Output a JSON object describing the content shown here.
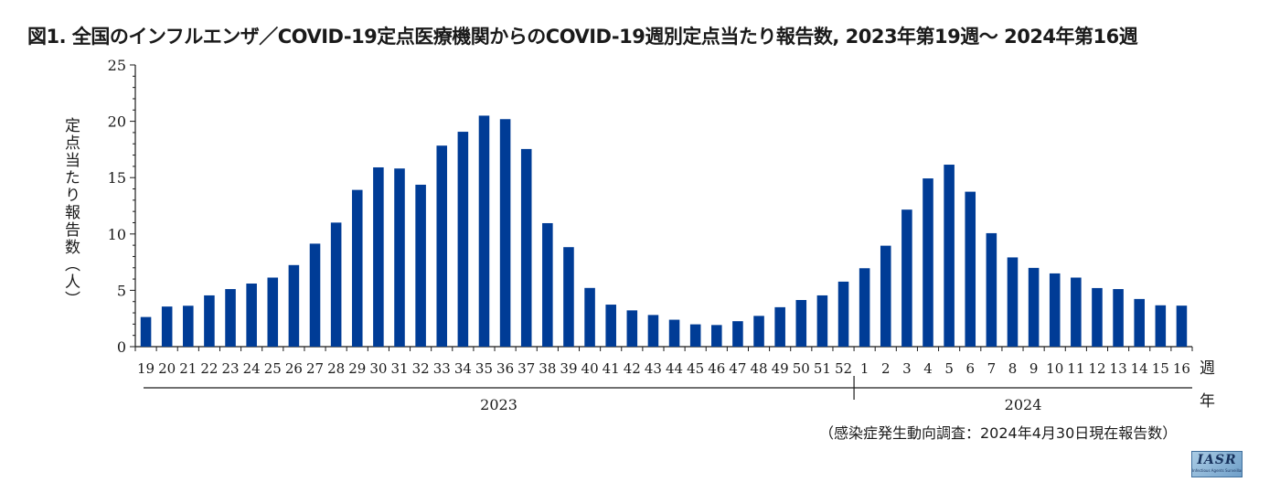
{
  "title": "図1. 全国のインフルエンザ／COVID-19定点医療機関からのCOVID-19週別定点当たり報告数, 2023年第19週〜 2024年第16週",
  "source_note": "（感染症発生動向調査：2024年4月30日現在報告数）",
  "logo": {
    "mark": "IASR",
    "sub": "Infectious Agents Surveillance Report"
  },
  "colors": {
    "bar": "#003c96",
    "axis": "#1a1a1a"
  },
  "chart_data": {
    "type": "bar",
    "title": "全国のインフルエンザ／COVID-19定点医療機関からのCOVID-19週別定点当たり報告数, 2023年第19週〜 2024年第16週",
    "ylabel": "定点当たり報告数（人）",
    "xlabel_week": "週",
    "xlabel_year": "年",
    "ylim": [
      0,
      25
    ],
    "yticks": [
      0,
      5,
      10,
      15,
      20,
      25
    ],
    "categories": [
      "19",
      "20",
      "21",
      "22",
      "23",
      "24",
      "25",
      "26",
      "27",
      "28",
      "29",
      "30",
      "31",
      "32",
      "33",
      "34",
      "35",
      "36",
      "37",
      "38",
      "39",
      "40",
      "41",
      "42",
      "43",
      "44",
      "45",
      "46",
      "47",
      "48",
      "49",
      "50",
      "51",
      "52",
      "1",
      "2",
      "3",
      "4",
      "5",
      "6",
      "7",
      "8",
      "9",
      "10",
      "11",
      "12",
      "13",
      "14",
      "15",
      "16"
    ],
    "values": [
      2.63,
      3.56,
      3.63,
      4.55,
      5.11,
      5.6,
      6.13,
      7.24,
      9.14,
      11.01,
      13.91,
      15.91,
      15.81,
      14.37,
      17.84,
      19.07,
      20.5,
      20.19,
      17.54,
      10.96,
      8.83,
      5.21,
      3.73,
      3.22,
      2.81,
      2.39,
      1.98,
      1.92,
      2.26,
      2.73,
      3.5,
      4.14,
      4.55,
      5.77,
      6.96,
      8.96,
      12.16,
      14.93,
      16.15,
      13.75,
      10.07,
      7.92,
      6.99,
      6.5,
      6.13,
      5.2,
      5.11,
      4.23,
      3.67,
      3.64
    ],
    "years": [
      {
        "label": "2023",
        "start_index": 0,
        "end_index": 33
      },
      {
        "label": "2024",
        "start_index": 34,
        "end_index": 49
      }
    ]
  }
}
